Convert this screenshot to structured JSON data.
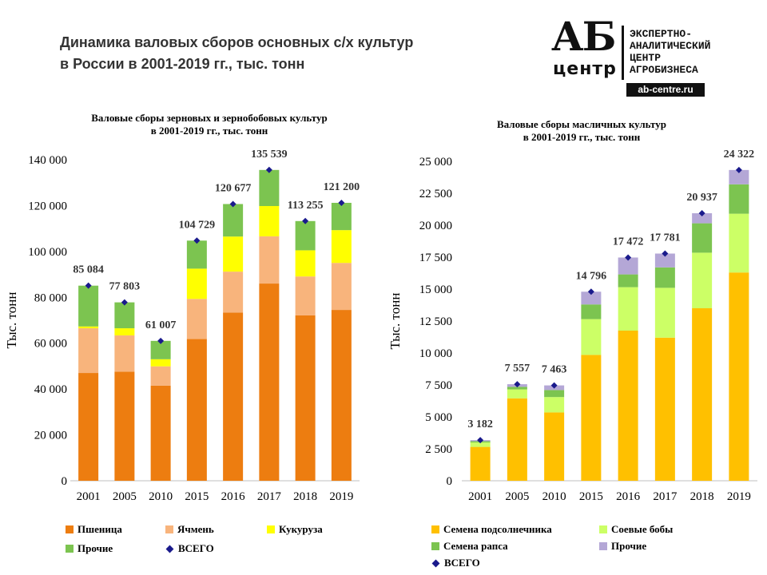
{
  "page": {
    "title_line1": "Динамика валовых сборов основных с/х культур",
    "title_line2": "в России в 2001-2019 гг., тыс. тонн"
  },
  "logo": {
    "mark_top": "АБ",
    "mark_bottom": "центр",
    "text": "ЭКСПЕРТНО-\nАНАЛИТИЧЕСКИЙ\nЦЕНТР\nАГРОБИЗНЕСА",
    "url": "ab-centre.ru"
  },
  "chart_data": [
    {
      "type": "bar",
      "stacked": true,
      "title_line1": "Валовые сборы зерновых и зернобобовых культур",
      "title_line2": "в 2001-2019 гг., тыс. тонн",
      "ylabel": "Тыс. тонн",
      "ylim": [
        0,
        140000
      ],
      "ytick_step": 20000,
      "yticks": [
        "0",
        "20 000",
        "40 000",
        "60 000",
        "80 000",
        "100 000",
        "120 000",
        "140 000"
      ],
      "categories": [
        "2001",
        "2005",
        "2010",
        "2015",
        "2016",
        "2017",
        "2018",
        "2019"
      ],
      "series": [
        {
          "name": "Пшеница",
          "color": "#ED7D10",
          "values": [
            47000,
            47600,
            41500,
            61800,
            73300,
            86000,
            72100,
            74500
          ]
        },
        {
          "name": "Ячмень",
          "color": "#F8B47C",
          "values": [
            19500,
            15800,
            8400,
            17500,
            17900,
            20600,
            17000,
            20500
          ]
        },
        {
          "name": "Кукуруза",
          "color": "#FFFF00",
          "values": [
            800,
            3100,
            3100,
            13200,
            15300,
            13200,
            11400,
            14300
          ]
        },
        {
          "name": "Прочие",
          "color": "#7CC450",
          "values": [
            17784,
            11303,
            8007,
            12229,
            14177,
            15739,
            12755,
            11900
          ]
        }
      ],
      "totals_series_name": "ВСЕГО",
      "totals": [
        85084,
        77803,
        61007,
        104729,
        120677,
        135539,
        113255,
        121200
      ],
      "total_labels": [
        "85 084",
        "77 803",
        "61 007",
        "104 729",
        "120 677",
        "135 539",
        "113 255",
        "121 200"
      ],
      "total_color": "#1a1a8c"
    },
    {
      "type": "bar",
      "stacked": true,
      "title_line1": "Валовые сборы масличных культур",
      "title_line2": "в 2001-2019 гг., тыс. тонн",
      "ylabel": "Тыс. тонн",
      "ylim": [
        0,
        25000
      ],
      "ytick_step": 2500,
      "yticks": [
        "0",
        "2 500",
        "5 000",
        "7 500",
        "10 000",
        "12 500",
        "15 000",
        "17 500",
        "20 000",
        "22 500",
        "25 000"
      ],
      "categories": [
        "2001",
        "2005",
        "2010",
        "2015",
        "2016",
        "2017",
        "2018",
        "2019"
      ],
      "series": [
        {
          "name": "Семена подсолнечника",
          "color": "#FFC000",
          "values": [
            2650,
            6450,
            5350,
            9850,
            11750,
            11200,
            13500,
            16300
          ]
        },
        {
          "name": "Соевые бобы",
          "color": "#CCFF66",
          "values": [
            350,
            700,
            1200,
            2800,
            3400,
            3900,
            4350,
            4600
          ]
        },
        {
          "name": "Семена рапса",
          "color": "#7CC450",
          "values": [
            100,
            200,
            550,
            1150,
            1000,
            1600,
            2300,
            2300
          ]
        },
        {
          "name": "Прочие",
          "color": "#B4A7D6",
          "values": [
            82,
            207,
            363,
            996,
            1322,
            1081,
            787,
            1122
          ]
        }
      ],
      "totals_series_name": "ВСЕГО",
      "totals": [
        3182,
        7557,
        7463,
        14796,
        17472,
        17781,
        20937,
        24322
      ],
      "total_labels": [
        "3 182",
        "7 557",
        "7 463",
        "14 796",
        "17 472",
        "17 781",
        "20 937",
        "24 322"
      ],
      "total_color": "#1a1a8c"
    }
  ]
}
